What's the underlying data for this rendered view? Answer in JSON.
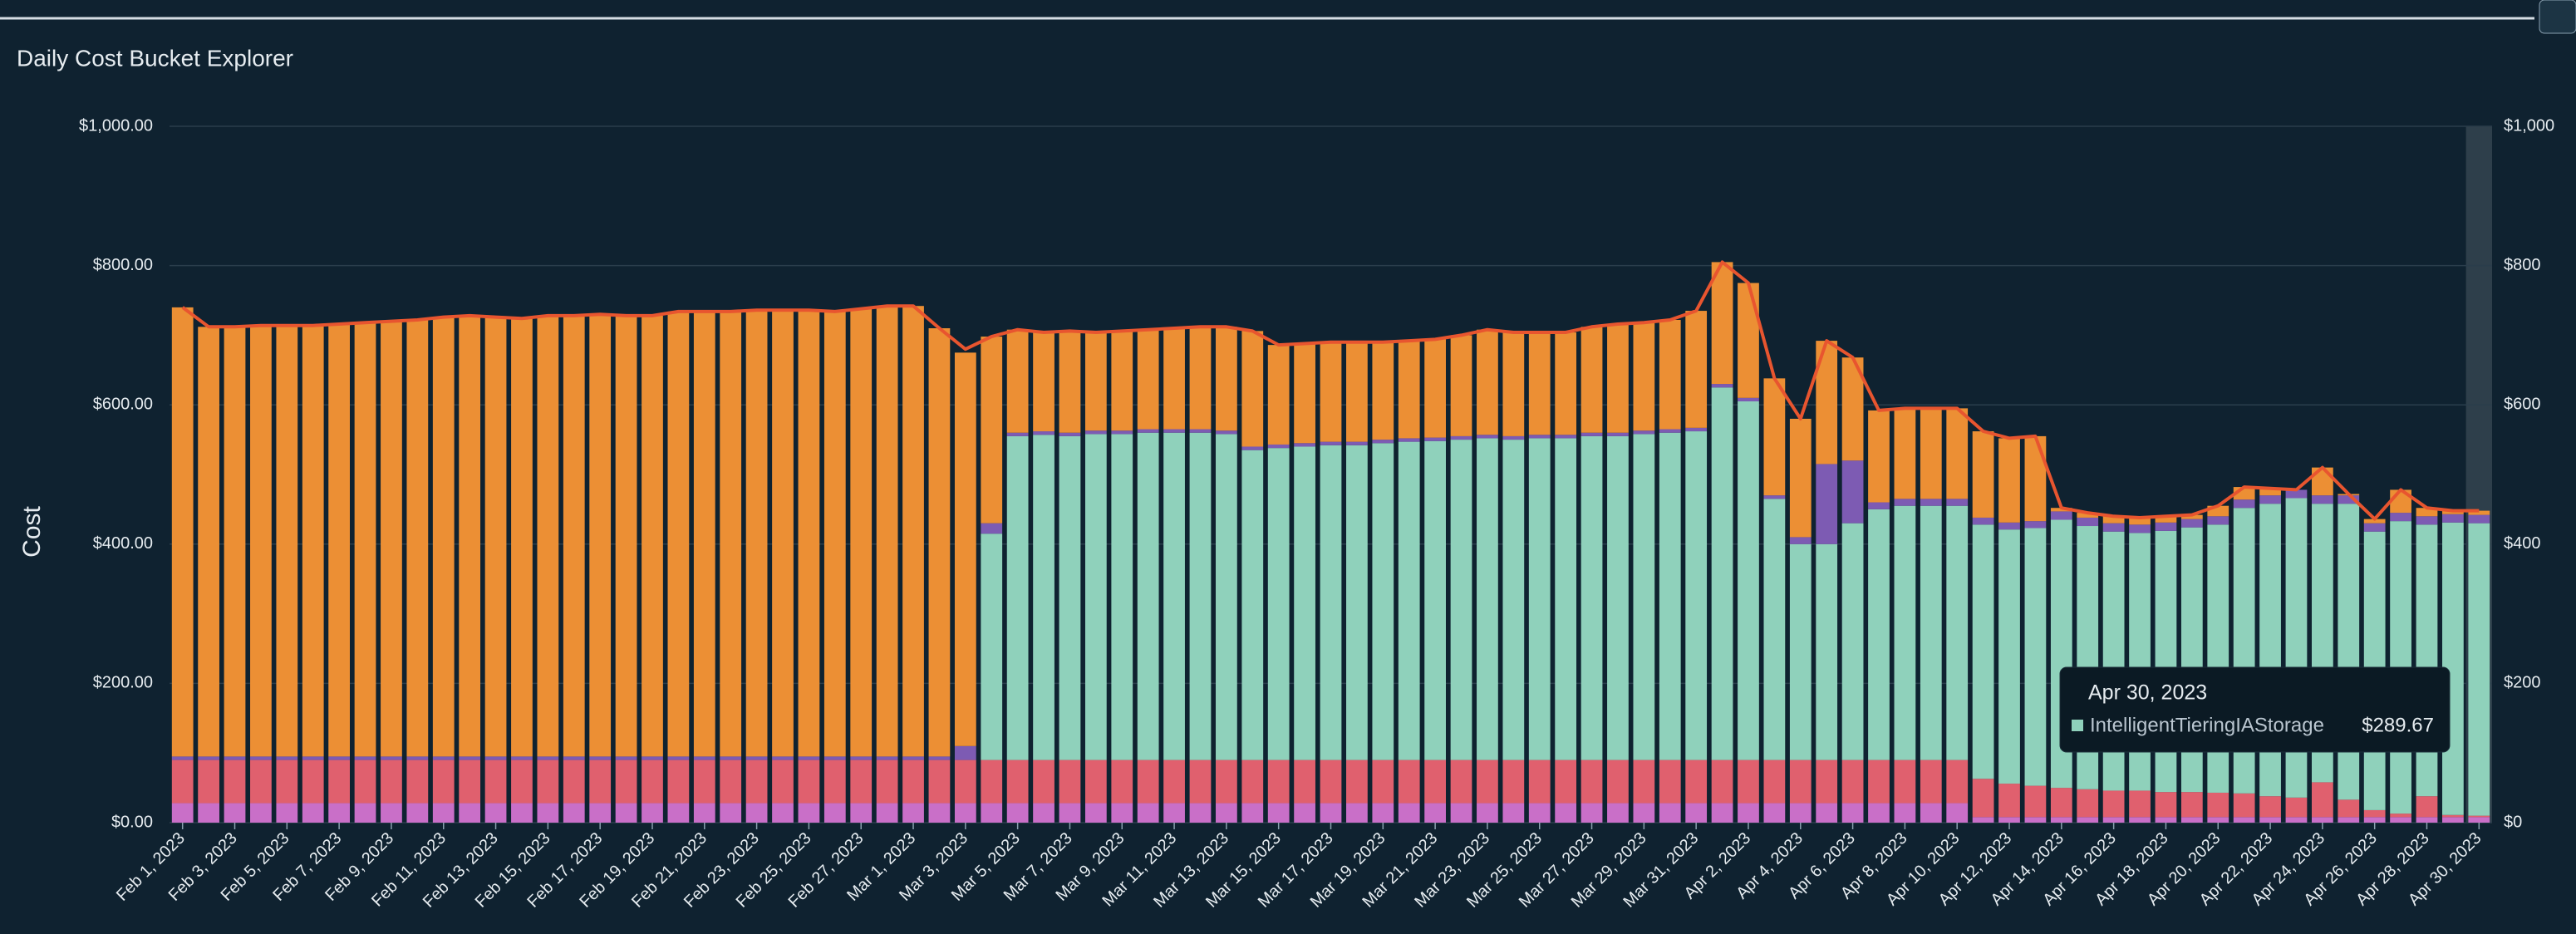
{
  "chart_data": {
    "type": "stacked-bar",
    "title": "Daily Cost Bucket Explorer",
    "y_label": "Cost",
    "categories": [
      "Feb 1, 2023",
      null,
      "Feb 3, 2023",
      null,
      "Feb 5, 2023",
      null,
      "Feb 7, 2023",
      null,
      "Feb 9, 2023",
      null,
      "Feb 11, 2023",
      null,
      "Feb 13, 2023",
      null,
      "Feb 15, 2023",
      null,
      "Feb 17, 2023",
      null,
      "Feb 19, 2023",
      null,
      "Feb 21, 2023",
      null,
      "Feb 23, 2023",
      null,
      "Feb 25, 2023",
      null,
      "Feb 27, 2023",
      null,
      "Mar 1, 2023",
      null,
      "Mar 3, 2023",
      null,
      "Mar 5, 2023",
      null,
      "Mar 7, 2023",
      null,
      "Mar 9, 2023",
      null,
      "Mar 11, 2023",
      null,
      "Mar 13, 2023",
      null,
      "Mar 15, 2023",
      null,
      "Mar 17, 2023",
      null,
      "Mar 19, 2023",
      null,
      "Mar 21, 2023",
      null,
      "Mar 23, 2023",
      null,
      "Mar 25, 2023",
      null,
      "Mar 27, 2023",
      null,
      "Mar 29, 2023",
      null,
      "Mar 31, 2023",
      null,
      "Apr 2, 2023",
      null,
      "Apr 4, 2023",
      null,
      "Apr 6, 2023",
      null,
      "Apr 8, 2023",
      null,
      "Apr 10, 2023",
      null,
      "Apr 12, 2023",
      null,
      "Apr 14, 2023",
      null,
      "Apr 16, 2023",
      null,
      "Apr 18, 2023",
      null,
      "Apr 20, 2023",
      null,
      "Apr 22, 2023",
      null,
      "Apr 24, 2023",
      null,
      "Apr 26, 2023",
      null,
      "Apr 28, 2023",
      null,
      "Apr 30, 2023"
    ],
    "series": [
      {
        "color": "#c96fc8",
        "values": [
          28,
          28,
          28,
          28,
          28,
          28,
          28,
          28,
          28,
          28,
          28,
          28,
          28,
          28,
          28,
          28,
          28,
          28,
          28,
          28,
          28,
          28,
          28,
          28,
          28,
          28,
          28,
          28,
          28,
          28,
          28,
          28,
          28,
          28,
          28,
          28,
          28,
          28,
          28,
          28,
          28,
          28,
          28,
          28,
          28,
          28,
          28,
          28,
          28,
          28,
          28,
          28,
          28,
          28,
          28,
          28,
          28,
          28,
          28,
          28,
          28,
          28,
          28,
          28,
          28,
          28,
          28,
          28,
          28,
          8,
          8,
          8,
          8,
          8,
          8,
          8,
          8,
          8,
          8,
          8,
          8,
          8,
          8,
          8,
          8,
          8,
          8,
          8,
          8
        ]
      },
      {
        "color": "#e0606e",
        "values": [
          62,
          62,
          62,
          62,
          62,
          62,
          62,
          62,
          62,
          62,
          62,
          62,
          62,
          62,
          62,
          62,
          62,
          62,
          62,
          62,
          62,
          62,
          62,
          62,
          62,
          62,
          62,
          62,
          62,
          62,
          62,
          62,
          62,
          62,
          62,
          62,
          62,
          62,
          62,
          62,
          62,
          62,
          62,
          62,
          62,
          62,
          62,
          62,
          62,
          62,
          62,
          62,
          62,
          62,
          62,
          62,
          62,
          62,
          62,
          62,
          62,
          62,
          62,
          62,
          62,
          62,
          62,
          62,
          62,
          55,
          48,
          45,
          42,
          40,
          38,
          38,
          36,
          36,
          35,
          34,
          30,
          28,
          50,
          25,
          10,
          5,
          30,
          3,
          2
        ]
      },
      {
        "color": "#8fd1bb",
        "values": [
          0,
          0,
          0,
          0,
          0,
          0,
          0,
          0,
          0,
          0,
          0,
          0,
          0,
          0,
          0,
          0,
          0,
          0,
          0,
          0,
          0,
          0,
          0,
          0,
          0,
          0,
          0,
          0,
          0,
          0,
          0,
          325,
          465,
          467,
          465,
          468,
          468,
          470,
          470,
          470,
          468,
          445,
          448,
          450,
          452,
          452,
          455,
          457,
          458,
          460,
          462,
          460,
          462,
          462,
          465,
          465,
          468,
          470,
          472,
          535,
          515,
          375,
          310,
          310,
          340,
          360,
          365,
          365,
          365,
          365,
          365,
          370,
          385,
          378,
          372,
          370,
          375,
          380,
          385,
          410,
          420,
          430,
          400,
          425,
          400,
          420,
          390,
          420,
          420
        ]
      },
      {
        "color": "#7d5bb3",
        "values": [
          5,
          5,
          5,
          5,
          5,
          5,
          5,
          5,
          5,
          5,
          5,
          5,
          5,
          5,
          5,
          5,
          5,
          5,
          5,
          5,
          5,
          5,
          5,
          5,
          5,
          5,
          5,
          5,
          5,
          5,
          20,
          15,
          5,
          5,
          5,
          5,
          5,
          5,
          5,
          5,
          5,
          5,
          5,
          5,
          5,
          5,
          5,
          5,
          5,
          5,
          5,
          5,
          5,
          5,
          5,
          5,
          5,
          5,
          5,
          5,
          5,
          5,
          10,
          115,
          90,
          10,
          10,
          10,
          10,
          10,
          10,
          10,
          12,
          12,
          12,
          12,
          12,
          12,
          12,
          12,
          12,
          12,
          12,
          12,
          12,
          12,
          12,
          12,
          12
        ]
      },
      {
        "color": "#ec8f34",
        "values": [
          645,
          617,
          617,
          619,
          619,
          619,
          621,
          623,
          625,
          627,
          631,
          633,
          631,
          629,
          633,
          633,
          635,
          633,
          633,
          639,
          639,
          639,
          641,
          641,
          641,
          639,
          643,
          647,
          647,
          615,
          565,
          268,
          148,
          142,
          146,
          141,
          143,
          143,
          145,
          147,
          149,
          166,
          143,
          143,
          143,
          143,
          140,
          140,
          141,
          145,
          151,
          149,
          147,
          147,
          152,
          156,
          155,
          157,
          168,
          175,
          165,
          168,
          170,
          177,
          148,
          132,
          130,
          130,
          130,
          124,
          121,
          122,
          5,
          7,
          10,
          10,
          9,
          6,
          15,
          18,
          10,
          0,
          40,
          2,
          6,
          33,
          12,
          5,
          6
        ]
      }
    ],
    "line": {
      "color": "#e8552f",
      "values": [
        740,
        712,
        712,
        714,
        714,
        714,
        716,
        718,
        720,
        722,
        726,
        728,
        726,
        724,
        728,
        728,
        730,
        728,
        728,
        734,
        734,
        734,
        736,
        736,
        736,
        734,
        738,
        742,
        742,
        710,
        680,
        698,
        708,
        704,
        706,
        704,
        706,
        708,
        710,
        712,
        712,
        706,
        686,
        688,
        690,
        690,
        690,
        692,
        694,
        700,
        708,
        704,
        704,
        704,
        712,
        716,
        718,
        722,
        735,
        805,
        775,
        638,
        580,
        692,
        668,
        592,
        595,
        595,
        595,
        562,
        552,
        555,
        452,
        445,
        440,
        438,
        440,
        442,
        455,
        482,
        480,
        478,
        510,
        472,
        436,
        478,
        452,
        448,
        448
      ]
    },
    "ylim": [
      0,
      1000
    ],
    "yticks": [
      {
        "value": 0,
        "label": "$0.00"
      },
      {
        "value": 200,
        "label": "$200.00"
      },
      {
        "value": 400,
        "label": "$400.00"
      },
      {
        "value": 600,
        "label": "$600.00"
      },
      {
        "value": 800,
        "label": "$800.00"
      },
      {
        "value": 1000,
        "label": "$1,000.00"
      }
    ],
    "y2lim": [
      0,
      1000
    ],
    "y2ticks": [
      {
        "value": 0,
        "label": "$0"
      },
      {
        "value": 200,
        "label": "$200"
      },
      {
        "value": 400,
        "label": "$400"
      },
      {
        "value": 600,
        "label": "$600"
      },
      {
        "value": 800,
        "label": "$800"
      },
      {
        "value": 1000,
        "label": "$1,000"
      }
    ],
    "grid": true,
    "tooltip": {
      "date": "Apr 30, 2023",
      "name": "IntelligentTieringIAStorage",
      "value": 289.67,
      "value_label": "$289.67"
    }
  }
}
